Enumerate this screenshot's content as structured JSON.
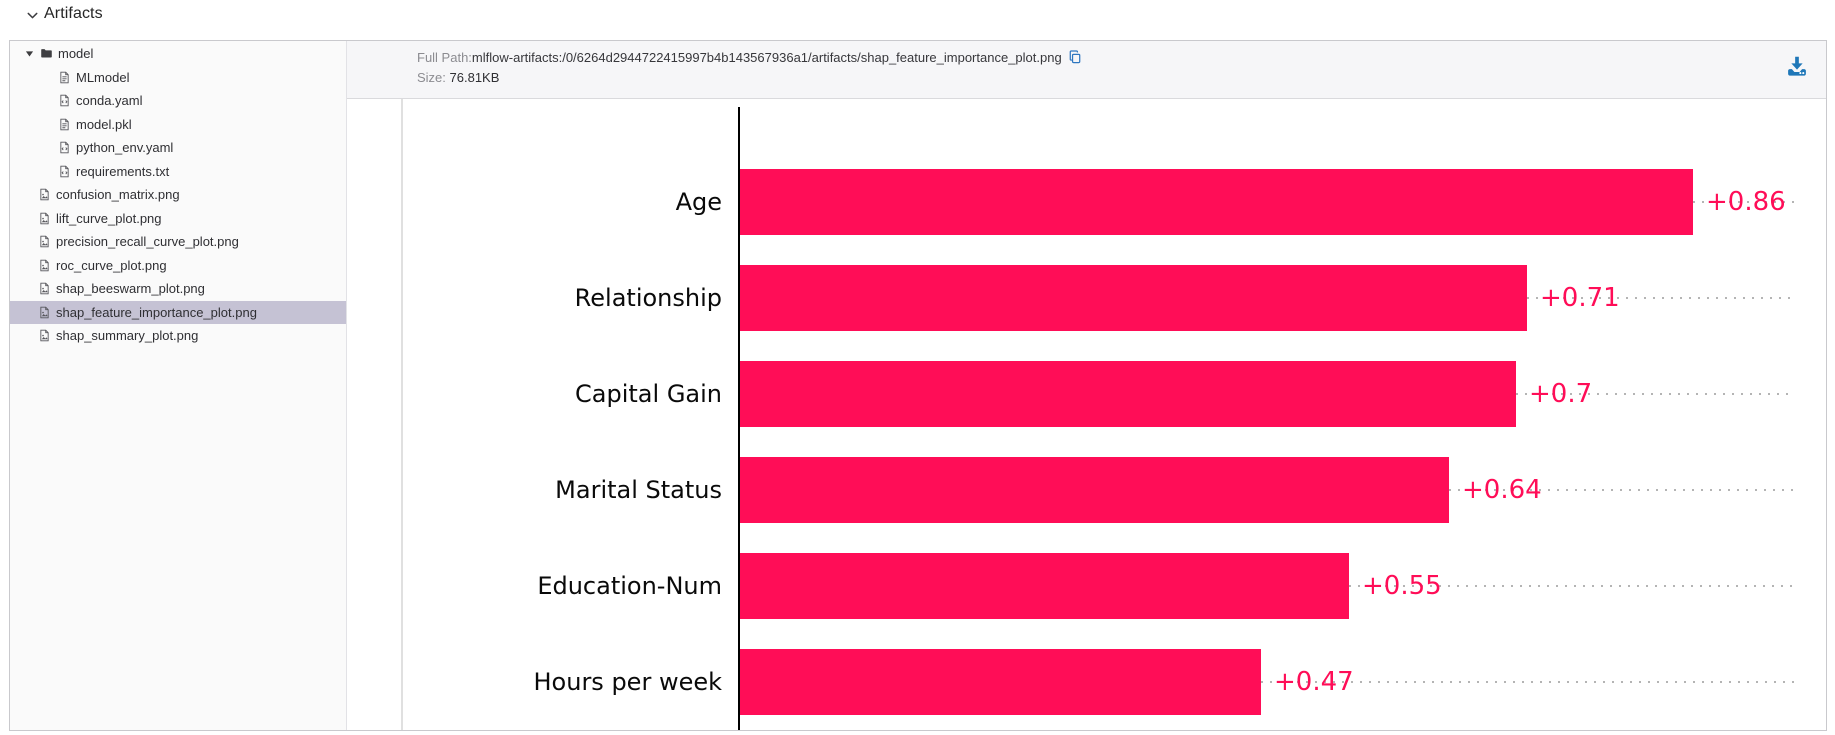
{
  "page": {
    "header": {
      "title": "Artifacts",
      "collapse_icon": "chevron-down-icon"
    }
  },
  "file_tree": {
    "items": [
      {
        "label": "model",
        "icon": "folder-icon",
        "level": 0,
        "expanded": true,
        "selected": false
      },
      {
        "label": "MLmodel",
        "icon": "file-document-icon",
        "level": 1,
        "selected": false
      },
      {
        "label": "conda.yaml",
        "icon": "file-code-icon",
        "level": 1,
        "selected": false
      },
      {
        "label": "model.pkl",
        "icon": "file-document-icon",
        "level": 1,
        "selected": false
      },
      {
        "label": "python_env.yaml",
        "icon": "file-code-icon",
        "level": 1,
        "selected": false
      },
      {
        "label": "requirements.txt",
        "icon": "file-code-icon",
        "level": 1,
        "selected": false
      },
      {
        "label": "confusion_matrix.png",
        "icon": "file-image-icon",
        "level": 0,
        "selected": false
      },
      {
        "label": "lift_curve_plot.png",
        "icon": "file-image-icon",
        "level": 0,
        "selected": false
      },
      {
        "label": "precision_recall_curve_plot.png",
        "icon": "file-image-icon",
        "level": 0,
        "selected": false
      },
      {
        "label": "roc_curve_plot.png",
        "icon": "file-image-icon",
        "level": 0,
        "selected": false
      },
      {
        "label": "shap_beeswarm_plot.png",
        "icon": "file-image-icon",
        "level": 0,
        "selected": false
      },
      {
        "label": "shap_feature_importance_plot.png",
        "icon": "file-image-icon",
        "level": 0,
        "selected": true
      },
      {
        "label": "shap_summary_plot.png",
        "icon": "file-image-icon",
        "level": 0,
        "selected": false
      }
    ]
  },
  "artifact_viewer": {
    "full_path_label": "Full Path:",
    "full_path_value": "mlflow-artifacts:/0/6264d2944722415997b4b143567936a1/artifacts/shap_feature_importance_plot.png",
    "size_label": "Size: ",
    "size_value": "76.81KB",
    "copy_icon": "copy-icon",
    "download_icon": "download-icon"
  },
  "chart_data": {
    "type": "bar",
    "orientation": "horizontal",
    "title": "",
    "xlabel": "",
    "ylabel": "",
    "categories": [
      "Age",
      "Relationship",
      "Capital Gain",
      "Marital Status",
      "Education-Num",
      "Hours per week"
    ],
    "values": [
      0.86,
      0.71,
      0.7,
      0.64,
      0.55,
      0.47
    ],
    "value_labels": [
      "+0.86",
      "+0.71",
      "+0.7",
      "+0.64",
      "+0.55",
      "+0.47"
    ],
    "xlim": [
      0,
      0.95
    ],
    "grid": "dotted-horizontal-rows",
    "legend": "none",
    "bar_color": "#ff0d57",
    "value_label_color": "#ff0d57",
    "axis_color": "#000000",
    "dotted_line_color": "#b4b4b4"
  },
  "colors": {
    "accent_blue": "#1f77b8",
    "selection_lavender": "#c5c2d4",
    "panel_header_bg": "#f6f6f8",
    "container_border": "#c9c9cd",
    "sidebar_bg": "#fafafa"
  }
}
